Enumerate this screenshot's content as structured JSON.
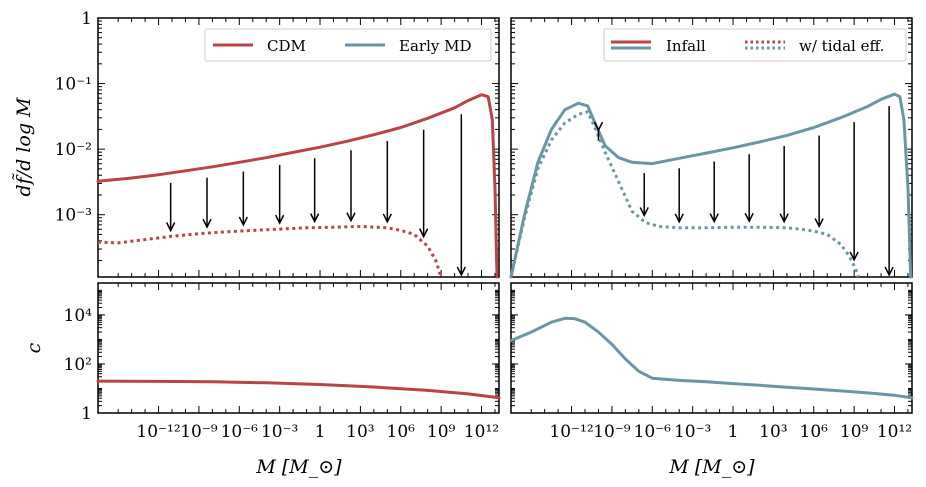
{
  "chart_data": {
    "type": "line",
    "colors": {
      "cdm": "#b94346",
      "early_md": "#6a96a3",
      "legend_frame": "#cccccc"
    },
    "x_axis": {
      "label": "M [M_⊙]",
      "scale": "log10",
      "xlim": [
        -16.5,
        13.3
      ],
      "ticks": [
        -12,
        -9,
        -6,
        -3,
        0,
        3,
        6,
        9,
        12
      ],
      "tick_labels": [
        "10⁻¹²",
        "10⁻⁹",
        "10⁻⁶",
        "10⁻³",
        "1",
        "10³",
        "10⁶",
        "10⁹",
        "10¹²"
      ]
    },
    "top_y_axis": {
      "label": "df̃/d log M",
      "scale": "log10",
      "ylim": [
        -3.95,
        0
      ],
      "ticks": [
        0,
        -1,
        -2,
        -3
      ],
      "tick_labels": [
        "1",
        "10⁻¹",
        "10⁻²",
        "10⁻³"
      ]
    },
    "bottom_y_axis": {
      "label": "c",
      "scale": "log10",
      "ylim": [
        0,
        5.3
      ],
      "ticks": [
        0,
        2,
        4
      ],
      "tick_labels": [
        "1",
        "10²",
        "10⁴"
      ]
    },
    "panels": [
      {
        "name": "top-left",
        "legend": [
          "CDM",
          "Early MD"
        ],
        "series": [
          {
            "name": "CDM (infall)",
            "style": "solid",
            "color": "cdm",
            "points": [
              [
                -16.5,
                -2.49
              ],
              [
                -14,
                -2.44
              ],
              [
                -12,
                -2.39
              ],
              [
                -10,
                -2.33
              ],
              [
                -8,
                -2.27
              ],
              [
                -6,
                -2.2
              ],
              [
                -4,
                -2.13
              ],
              [
                -2,
                -2.05
              ],
              [
                0,
                -1.97
              ],
              [
                2,
                -1.88
              ],
              [
                4,
                -1.78
              ],
              [
                6,
                -1.67
              ],
              [
                8,
                -1.53
              ],
              [
                10,
                -1.37
              ],
              [
                11,
                -1.26
              ],
              [
                12,
                -1.17
              ],
              [
                12.5,
                -1.2
              ],
              [
                12.8,
                -1.55
              ],
              [
                13.0,
                -2.6
              ],
              [
                13.15,
                -3.95
              ]
            ]
          },
          {
            "name": "CDM (w/ tidal eff.)",
            "style": "dotted",
            "color": "cdm",
            "points": [
              [
                -16.5,
                -3.42
              ],
              [
                -15,
                -3.43
              ],
              [
                -13,
                -3.38
              ],
              [
                -11,
                -3.33
              ],
              [
                -9,
                -3.29
              ],
              [
                -7,
                -3.26
              ],
              [
                -5,
                -3.24
              ],
              [
                -3,
                -3.22
              ],
              [
                -1,
                -3.2
              ],
              [
                1,
                -3.19
              ],
              [
                3,
                -3.18
              ],
              [
                5,
                -3.2
              ],
              [
                6,
                -3.24
              ],
              [
                7,
                -3.3
              ],
              [
                8,
                -3.48
              ],
              [
                8.6,
                -3.7
              ],
              [
                9.0,
                -3.95
              ]
            ]
          }
        ],
        "arrows_at_logM": [
          -11.1,
          -8.4,
          -5.7,
          -3.0,
          -0.4,
          2.3,
          5.0,
          7.7,
          10.5
        ]
      },
      {
        "name": "top-right",
        "legend": [
          "Infall",
          "w/ tidal eff."
        ],
        "series": [
          {
            "name": "Early MD (infall)",
            "style": "solid",
            "color": "early_md",
            "points": [
              [
                -16.5,
                -3.95
              ],
              [
                -15.5,
                -3.0
              ],
              [
                -14.5,
                -2.2
              ],
              [
                -13.5,
                -1.7
              ],
              [
                -12.5,
                -1.4
              ],
              [
                -11.5,
                -1.3
              ],
              [
                -10.8,
                -1.34
              ],
              [
                -10.3,
                -1.58
              ],
              [
                -9.5,
                -1.95
              ],
              [
                -8.5,
                -2.13
              ],
              [
                -7.5,
                -2.2
              ],
              [
                -6,
                -2.22
              ],
              [
                -4,
                -2.14
              ],
              [
                -2,
                -2.06
              ],
              [
                0,
                -1.98
              ],
              [
                2,
                -1.89
              ],
              [
                4,
                -1.79
              ],
              [
                6,
                -1.67
              ],
              [
                8,
                -1.52
              ],
              [
                10,
                -1.35
              ],
              [
                11,
                -1.24
              ],
              [
                12,
                -1.16
              ],
              [
                12.4,
                -1.2
              ],
              [
                12.7,
                -1.55
              ],
              [
                13.0,
                -2.6
              ],
              [
                13.2,
                -3.95
              ]
            ]
          },
          {
            "name": "Early MD (w/ tidal eff.)",
            "style": "dotted",
            "color": "early_md",
            "points": [
              [
                -16.5,
                -3.95
              ],
              [
                -15.5,
                -3.05
              ],
              [
                -14.5,
                -2.3
              ],
              [
                -13.5,
                -1.86
              ],
              [
                -12.5,
                -1.6
              ],
              [
                -11.5,
                -1.47
              ],
              [
                -10.8,
                -1.43
              ],
              [
                -10.2,
                -1.7
              ],
              [
                -9.5,
                -2.05
              ],
              [
                -8.5,
                -2.5
              ],
              [
                -7.5,
                -2.95
              ],
              [
                -6.5,
                -3.12
              ],
              [
                -5.5,
                -3.18
              ],
              [
                -4,
                -3.2
              ],
              [
                -2,
                -3.2
              ],
              [
                0,
                -3.19
              ],
              [
                2,
                -3.19
              ],
              [
                4,
                -3.2
              ],
              [
                5,
                -3.22
              ],
              [
                6,
                -3.25
              ],
              [
                7,
                -3.3
              ],
              [
                8,
                -3.45
              ],
              [
                8.6,
                -3.62
              ],
              [
                9.1,
                -3.82
              ],
              [
                9.3,
                -3.95
              ]
            ]
          }
        ],
        "arrows_at_logM": [
          -10.0,
          -6.6,
          -4.0,
          -1.4,
          1.2,
          3.8,
          6.4,
          9.0,
          11.6
        ]
      },
      {
        "name": "bottom-left",
        "series": [
          {
            "name": "CDM concentration",
            "style": "solid",
            "color": "cdm",
            "points": [
              [
                -16.5,
                1.3
              ],
              [
                -12,
                1.29
              ],
              [
                -8,
                1.27
              ],
              [
                -4,
                1.23
              ],
              [
                0,
                1.16
              ],
              [
                4,
                1.06
              ],
              [
                8,
                0.92
              ],
              [
                11,
                0.78
              ],
              [
                13.3,
                0.62
              ]
            ]
          }
        ]
      },
      {
        "name": "bottom-right",
        "series": [
          {
            "name": "Early MD concentration",
            "style": "solid",
            "color": "early_md",
            "points": [
              [
                -16.5,
                2.95
              ],
              [
                -15,
                3.3
              ],
              [
                -13.5,
                3.7
              ],
              [
                -12.5,
                3.86
              ],
              [
                -11.8,
                3.85
              ],
              [
                -11,
                3.7
              ],
              [
                -10,
                3.3
              ],
              [
                -9,
                2.8
              ],
              [
                -8,
                2.2
              ],
              [
                -7,
                1.7
              ],
              [
                -6,
                1.42
              ],
              [
                -4,
                1.33
              ],
              [
                -2,
                1.27
              ],
              [
                0,
                1.2
              ],
              [
                2,
                1.13
              ],
              [
                4,
                1.05
              ],
              [
                6,
                0.98
              ],
              [
                8,
                0.9
              ],
              [
                10,
                0.82
              ],
              [
                12,
                0.72
              ],
              [
                13.3,
                0.62
              ]
            ]
          }
        ]
      }
    ]
  }
}
